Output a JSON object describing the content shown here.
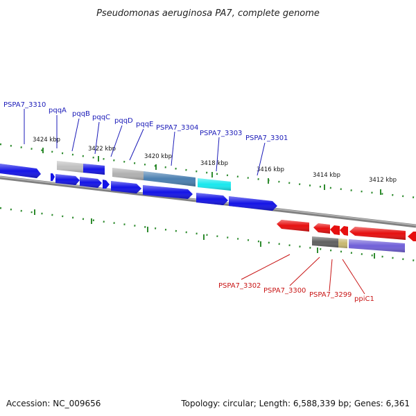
{
  "title": "Pseudomonas aeruginosa PA7, complete genome",
  "footer": {
    "accession": "Accession: NC_009656",
    "summary": "Topology: circular; Length: 6,588,339 bp; Genes: 6,361"
  },
  "colors": {
    "forward": "#1414e6",
    "reverse": "#e60f0f",
    "backbone": "#808080",
    "ticks": "#2e8b2e",
    "label_forward": "#1a1ab8",
    "label_reverse": "#c81414"
  },
  "ticks": [
    "3424 kbp",
    "3422 kbp",
    "3420 kbp",
    "3418 kbp",
    "3416 kbp",
    "3414 kbp",
    "3412 kbp"
  ],
  "forward_labels": [
    "PSPA7_3310",
    "pqqA",
    "pqqB",
    "pqqC",
    "pqqD",
    "pqqE",
    "PSPA7_3304",
    "PSPA7_3303",
    "PSPA7_3301"
  ],
  "reverse_labels": [
    "PSPA7_3302",
    "PSPA7_3300",
    "PSPA7_3299",
    "ppiC1"
  ]
}
